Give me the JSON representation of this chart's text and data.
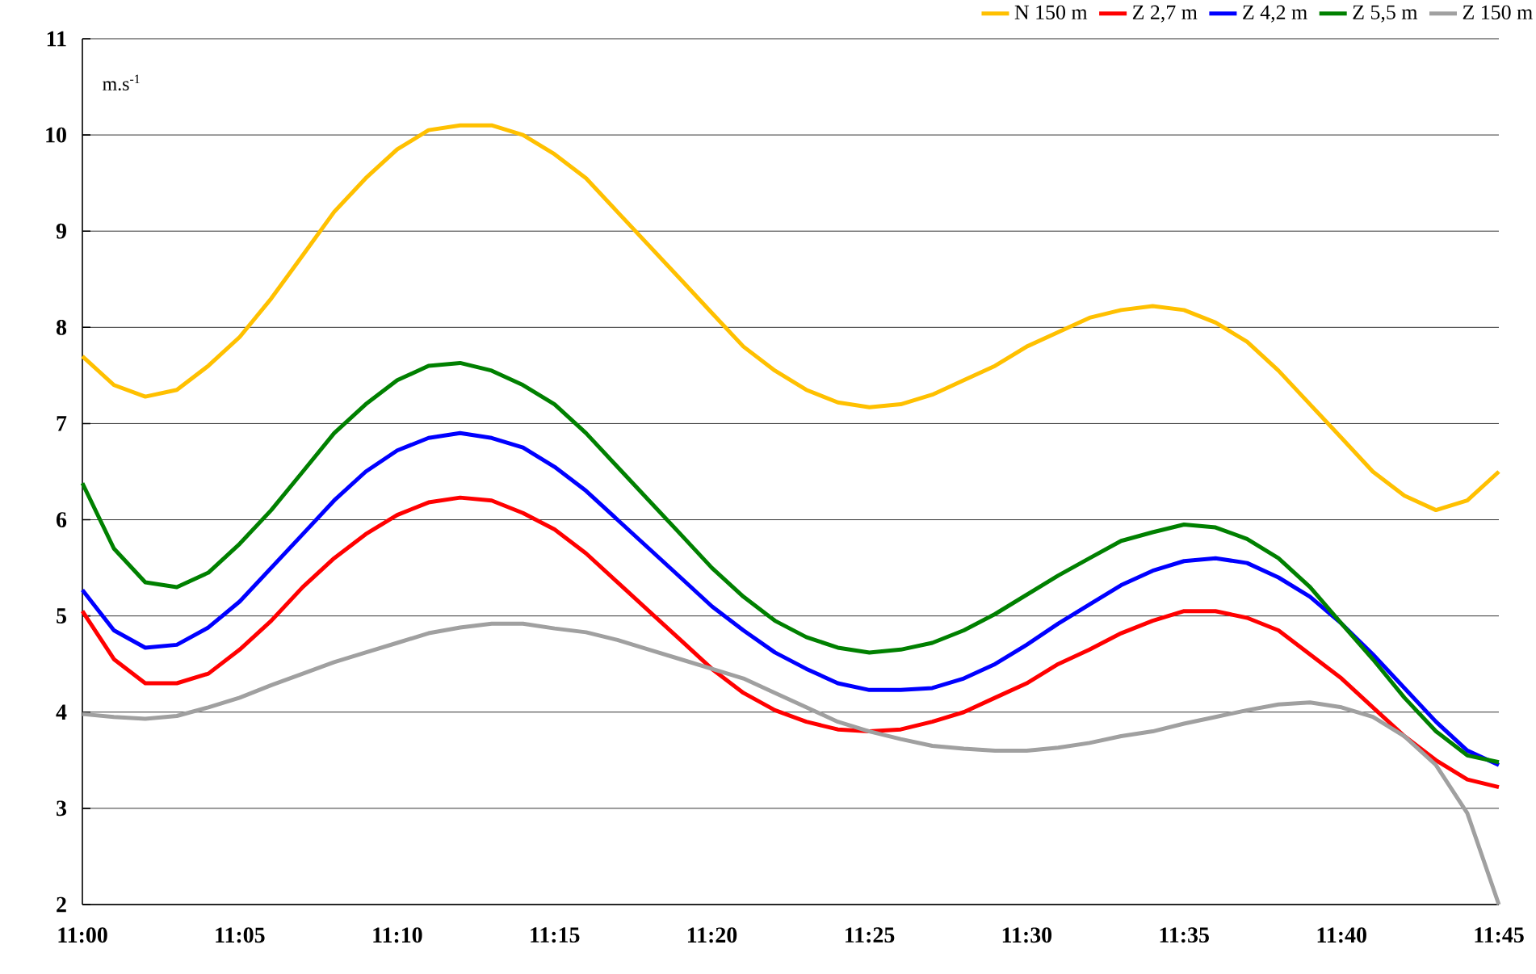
{
  "chart_data": {
    "type": "line",
    "ylabel": "m.s$^{-1}$",
    "x": [
      11.0,
      11.0167,
      11.0333,
      11.05,
      11.0667,
      11.0833,
      11.1,
      11.1167,
      11.1333,
      11.15,
      11.1667,
      11.1833,
      11.2,
      11.2167,
      11.2333,
      11.25,
      11.2667,
      11.2833,
      11.3,
      11.3167,
      11.3333,
      11.35,
      11.3667,
      11.3833,
      11.4,
      11.4167,
      11.4333,
      11.45,
      11.4667,
      11.4833,
      11.5,
      11.5167,
      11.5333,
      11.55,
      11.5667,
      11.5833,
      11.6,
      11.6167,
      11.6333,
      11.65,
      11.6667,
      11.6833,
      11.7,
      11.7167,
      11.7333,
      11.75
    ],
    "series": [
      {
        "name": "N 150 m",
        "color": "#ffc000",
        "values": [
          7.7,
          7.4,
          7.28,
          7.35,
          7.6,
          7.9,
          8.3,
          8.75,
          9.2,
          9.55,
          9.85,
          10.05,
          10.1,
          10.1,
          10.0,
          9.8,
          9.55,
          9.2,
          8.85,
          8.5,
          8.15,
          7.8,
          7.55,
          7.35,
          7.22,
          7.17,
          7.2,
          7.3,
          7.45,
          7.6,
          7.8,
          7.95,
          8.1,
          8.18,
          8.22,
          8.18,
          8.05,
          7.85,
          7.55,
          7.2,
          6.85,
          6.5,
          6.25,
          6.1,
          6.2,
          6.5
        ]
      },
      {
        "name": "Z 2,7 m",
        "color": "#ff0000",
        "values": [
          5.05,
          4.55,
          4.3,
          4.3,
          4.4,
          4.65,
          4.95,
          5.3,
          5.6,
          5.85,
          6.05,
          6.18,
          6.23,
          6.2,
          6.07,
          5.9,
          5.65,
          5.35,
          5.05,
          4.75,
          4.45,
          4.2,
          4.02,
          3.9,
          3.82,
          3.8,
          3.82,
          3.9,
          4.0,
          4.15,
          4.3,
          4.5,
          4.65,
          4.82,
          4.95,
          5.05,
          5.05,
          4.98,
          4.85,
          4.6,
          4.35,
          4.05,
          3.75,
          3.5,
          3.3,
          3.22
        ]
      },
      {
        "name": "Z 4,2 m",
        "color": "#0000ff",
        "values": [
          5.27,
          4.85,
          4.67,
          4.7,
          4.88,
          5.15,
          5.5,
          5.85,
          6.2,
          6.5,
          6.72,
          6.85,
          6.9,
          6.85,
          6.75,
          6.55,
          6.3,
          6.0,
          5.7,
          5.4,
          5.1,
          4.85,
          4.62,
          4.45,
          4.3,
          4.23,
          4.23,
          4.25,
          4.35,
          4.5,
          4.7,
          4.92,
          5.12,
          5.32,
          5.47,
          5.57,
          5.6,
          5.55,
          5.4,
          5.2,
          4.92,
          4.6,
          4.25,
          3.9,
          3.6,
          3.45
        ]
      },
      {
        "name": "Z 5,5 m",
        "color": "#008000",
        "values": [
          6.38,
          5.7,
          5.35,
          5.3,
          5.45,
          5.75,
          6.1,
          6.5,
          6.9,
          7.2,
          7.45,
          7.6,
          7.63,
          7.55,
          7.4,
          7.2,
          6.9,
          6.55,
          6.2,
          5.85,
          5.5,
          5.2,
          4.95,
          4.78,
          4.67,
          4.62,
          4.65,
          4.72,
          4.85,
          5.02,
          5.22,
          5.42,
          5.6,
          5.78,
          5.87,
          5.95,
          5.92,
          5.8,
          5.6,
          5.3,
          4.92,
          4.55,
          4.15,
          3.8,
          3.55,
          3.48
        ]
      },
      {
        "name": "Z 150 m",
        "color": "#a0a0a0",
        "values": [
          3.98,
          3.95,
          3.93,
          3.96,
          4.05,
          4.15,
          4.28,
          4.4,
          4.52,
          4.62,
          4.72,
          4.82,
          4.88,
          4.92,
          4.92,
          4.87,
          4.83,
          4.75,
          4.65,
          4.55,
          4.45,
          4.35,
          4.2,
          4.05,
          3.9,
          3.8,
          3.72,
          3.65,
          3.62,
          3.6,
          3.6,
          3.63,
          3.68,
          3.75,
          3.8,
          3.88,
          3.95,
          4.02,
          4.08,
          4.1,
          4.05,
          3.95,
          3.75,
          3.45,
          2.95,
          2.0
        ]
      }
    ],
    "xlim": [
      11.0,
      11.75
    ],
    "ylim": [
      2,
      11
    ],
    "xticks": [
      {
        "value": 11.0,
        "label": "11:00"
      },
      {
        "value": 11.0833,
        "label": "11:05"
      },
      {
        "value": 11.1667,
        "label": "11:10"
      },
      {
        "value": 11.25,
        "label": "11:15"
      },
      {
        "value": 11.3333,
        "label": "11:20"
      },
      {
        "value": 11.4167,
        "label": "11:25"
      },
      {
        "value": 11.5,
        "label": "11:30"
      },
      {
        "value": 11.5833,
        "label": "11:35"
      },
      {
        "value": 11.6667,
        "label": "11:40"
      },
      {
        "value": 11.75,
        "label": "11:45"
      }
    ],
    "yticks": [
      2,
      3,
      4,
      5,
      6,
      7,
      8,
      9,
      10,
      11
    ],
    "grid": "y",
    "legend": "top right",
    "marker": "none",
    "line_style": "solid"
  }
}
